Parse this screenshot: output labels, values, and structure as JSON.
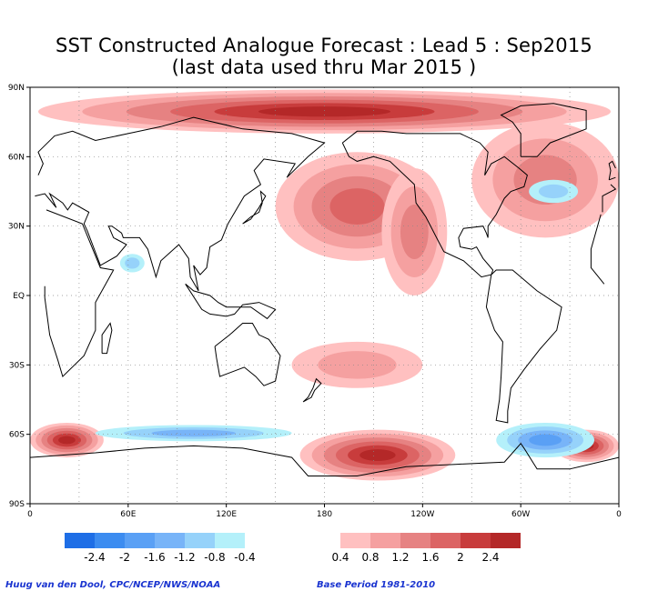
{
  "title_line1": "SST Constructed Analogue Forecast : Lead 5 : Sep2015",
  "title_line2": "(last data used thru Mar 2015 )",
  "footer_left": "Huug van den Dool, CPC/NCEP/NWS/NOAA",
  "footer_right": "Base Period 1981-2010",
  "chart_data": {
    "type": "heatmap",
    "title": "SST Constructed Analogue Forecast : Lead 5 : Sep2015",
    "subtitle": "(last data used thru Mar 2015 )",
    "x_ticks": [
      "0",
      "60E",
      "120E",
      "180",
      "120W",
      "60W",
      "0"
    ],
    "y_ticks": [
      "90N",
      "60N",
      "30N",
      "EQ",
      "30S",
      "60S",
      "90S"
    ],
    "xlim": [
      0,
      360
    ],
    "ylim": [
      -90,
      90
    ],
    "grid": true,
    "colorbar": {
      "labels": [
        "-2.4",
        "-2",
        "-1.6",
        "-1.2",
        "-0.8",
        "-0.4",
        "0.4",
        "0.8",
        "1.2",
        "1.6",
        "2",
        "2.4"
      ],
      "negative_colors": [
        "#1e6ee6",
        "#3c8cf0",
        "#5aa0f5",
        "#78b4f8",
        "#96d2fa",
        "#b4f0fa"
      ],
      "positive_colors": [
        "#ffc0c0",
        "#f5a0a0",
        "#e68282",
        "#dc6464",
        "#c83c3c",
        "#b42828"
      ]
    },
    "regions": [
      {
        "name": "arctic-warm",
        "lon": [
          5,
          355
        ],
        "lat": [
          70,
          89
        ],
        "value": 2.4
      },
      {
        "name": "north-pacific-warm",
        "lon": [
          150,
          250
        ],
        "lat": [
          15,
          62
        ],
        "value": 1.6
      },
      {
        "name": "ne-pacific-coastal-warm",
        "lon": [
          215,
          255
        ],
        "lat": [
          0,
          55
        ],
        "value": 1.2
      },
      {
        "name": "north-atlantic-warm",
        "lon": [
          270,
          360
        ],
        "lat": [
          25,
          75
        ],
        "value": 1.2
      },
      {
        "name": "north-atlantic-cold",
        "lon": [
          305,
          335
        ],
        "lat": [
          40,
          50
        ],
        "value": -0.8
      },
      {
        "name": "southern-ocean-atlantic-warm",
        "lon": [
          0,
          45
        ],
        "lat": [
          -70,
          -55
        ],
        "value": 2.4
      },
      {
        "name": "southern-ocean-pacific-warm",
        "lon": [
          165,
          260
        ],
        "lat": [
          -80,
          -58
        ],
        "value": 2.4
      },
      {
        "name": "southern-ocean-se-pacific-warm",
        "lon": [
          320,
          360
        ],
        "lat": [
          -72,
          -58
        ],
        "value": 2.4
      },
      {
        "name": "southern-ocean-indian-cold",
        "lon": [
          40,
          160
        ],
        "lat": [
          -63,
          -56
        ],
        "value": -1.2
      },
      {
        "name": "southern-ocean-atlantic-cold",
        "lon": [
          285,
          345
        ],
        "lat": [
          -70,
          -55
        ],
        "value": -1.6
      },
      {
        "name": "south-pacific-warm",
        "lon": [
          160,
          240
        ],
        "lat": [
          -40,
          -20
        ],
        "value": 0.8
      },
      {
        "name": "arabian-sea-cold",
        "lon": [
          55,
          70
        ],
        "lat": [
          10,
          18
        ],
        "value": -0.8
      }
    ]
  }
}
